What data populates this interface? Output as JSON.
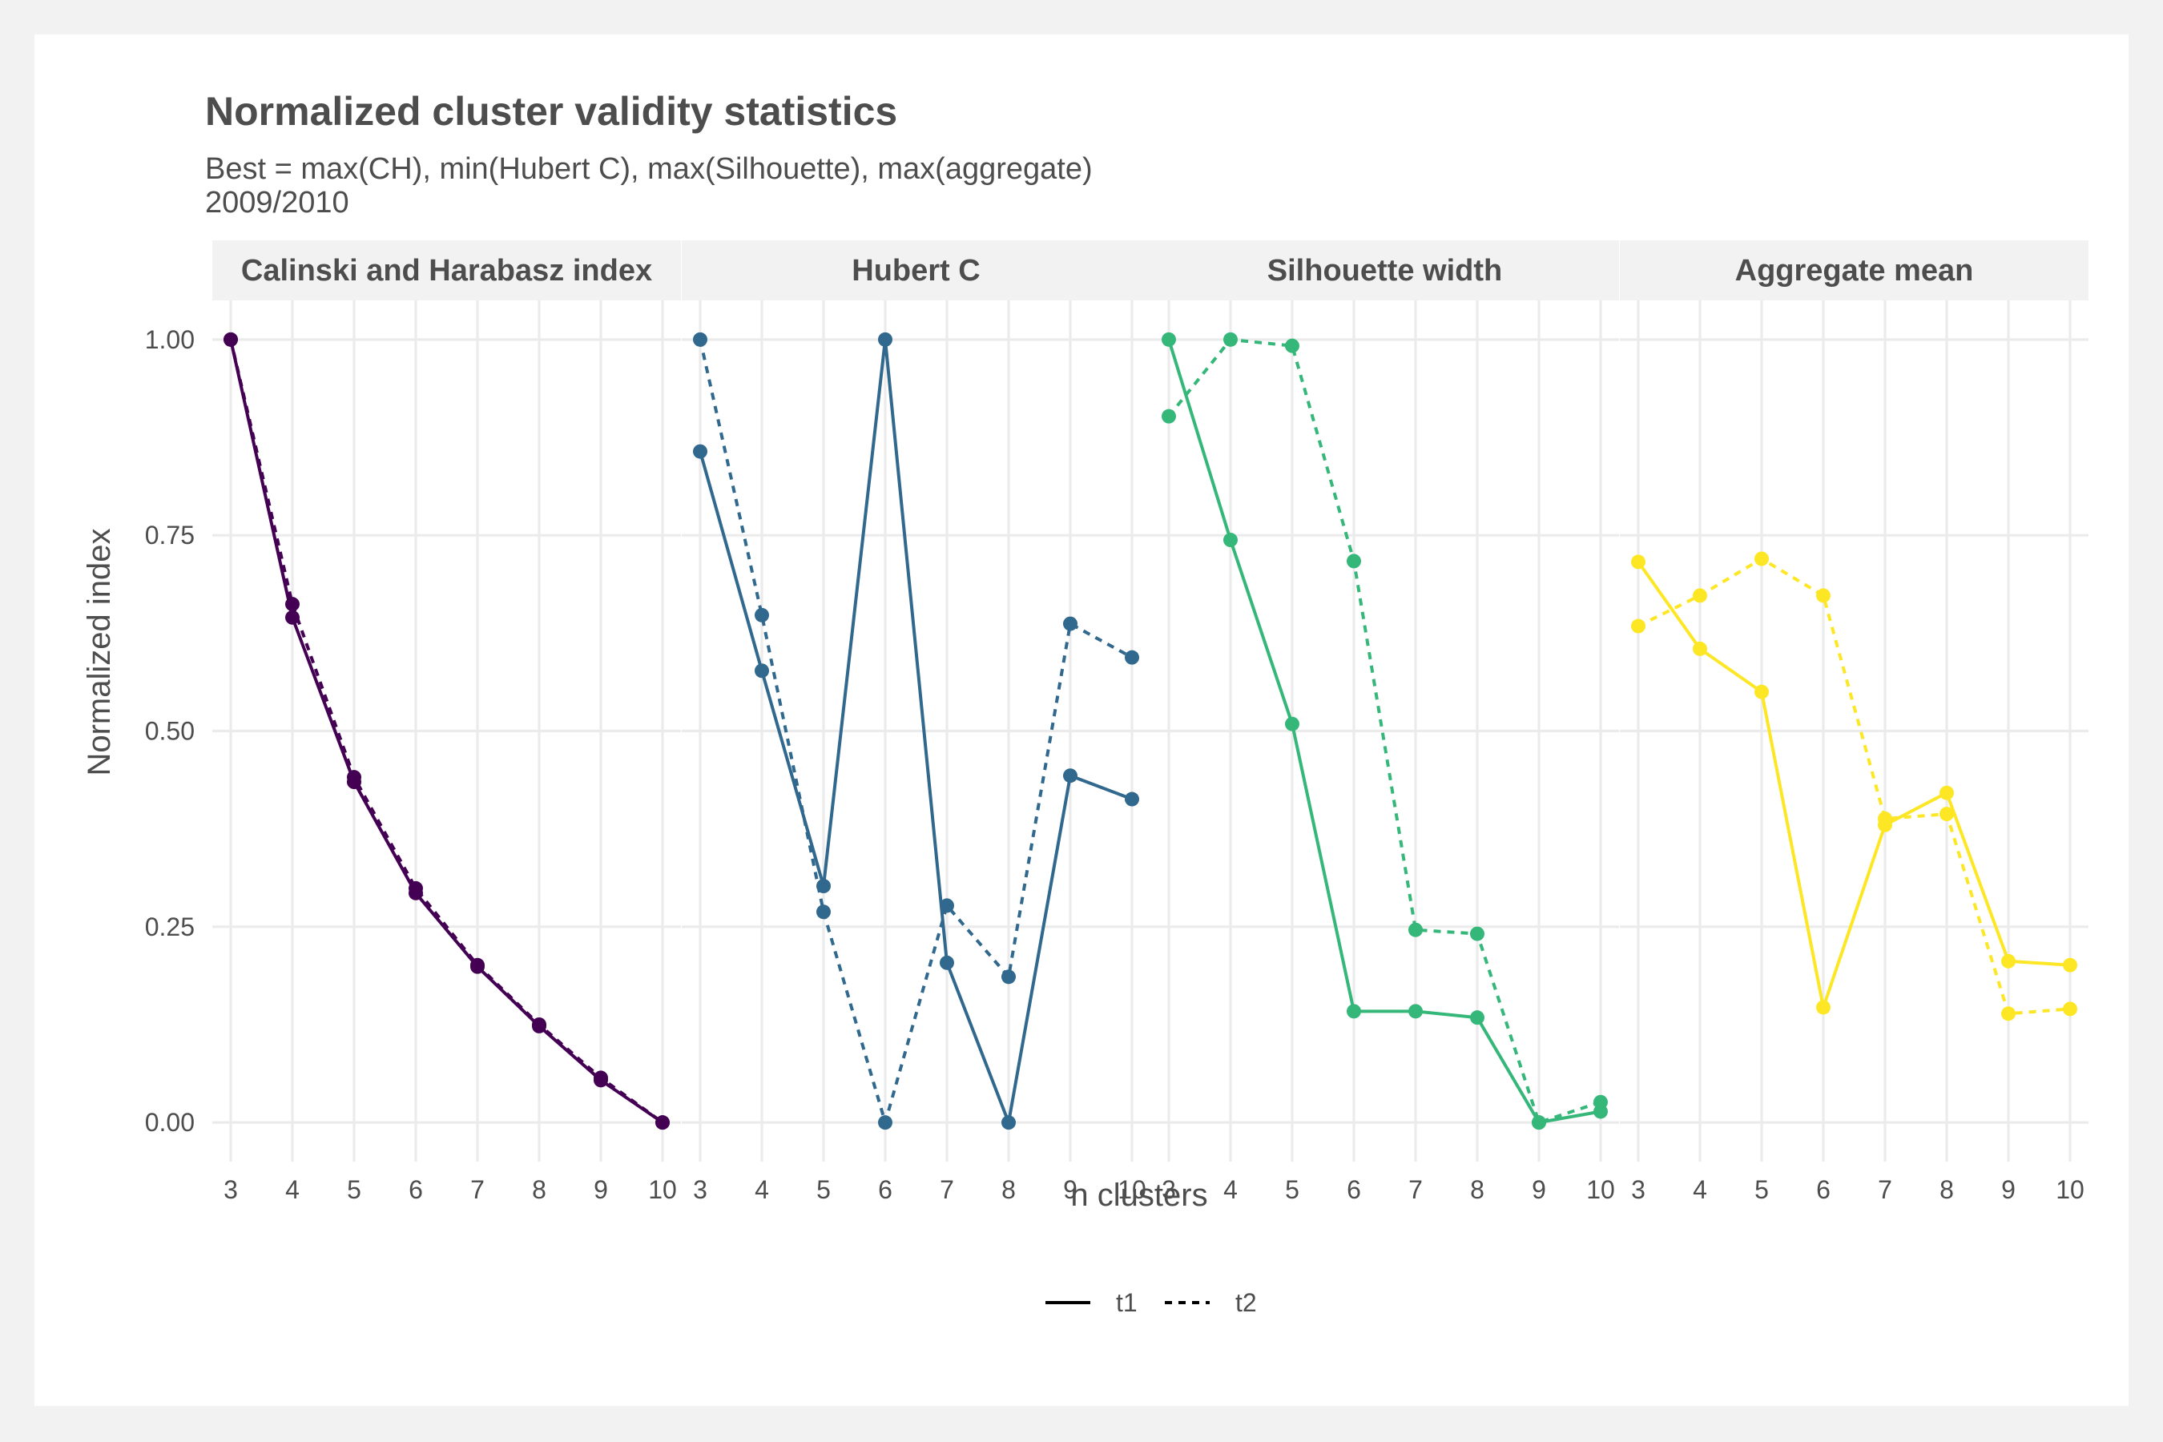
{
  "chart_data": {
    "type": "line",
    "title": "Normalized cluster validity statistics",
    "subtitle_lines": [
      "Best = max(CH), min(Hubert C), max(Silhouette), max(aggregate)",
      "2009/2010"
    ],
    "xlabel": "n clusters",
    "ylabel": "Normalized index",
    "x": [
      3,
      4,
      5,
      6,
      7,
      8,
      9,
      10
    ],
    "ylim": [
      -0.05,
      1.05
    ],
    "y_ticks": [
      0,
      0.25,
      0.5,
      0.75,
      1
    ],
    "y_tick_labels": [
      "0.00",
      "0.25",
      "0.50",
      "0.75",
      "1.00"
    ],
    "grid": true,
    "legend": {
      "position": "bottom",
      "entries": [
        {
          "label": "t1",
          "linetype": "solid"
        },
        {
          "label": "t2",
          "linetype": "dashed"
        }
      ]
    },
    "panels": [
      {
        "title": "Calinski and Harabasz index",
        "color": "#440154",
        "series": [
          {
            "name": "t1",
            "values": [
              1.0,
              0.645,
              0.435,
              0.293,
              0.199,
              0.123,
              0.054,
              0.0
            ]
          },
          {
            "name": "t2",
            "values": [
              1.0,
              0.662,
              0.441,
              0.299,
              0.201,
              0.125,
              0.057,
              0.0
            ]
          }
        ]
      },
      {
        "title": "Hubert C",
        "color": "#31688e",
        "series": [
          {
            "name": "t1",
            "values": [
              0.857,
              0.577,
              0.302,
              1.0,
              0.204,
              0.0,
              0.443,
              0.413
            ]
          },
          {
            "name": "t2",
            "values": [
              1.0,
              0.648,
              0.269,
              0.0,
              0.277,
              0.186,
              0.637,
              0.594
            ]
          }
        ]
      },
      {
        "title": "Silhouette width",
        "color": "#35b779",
        "series": [
          {
            "name": "t1",
            "values": [
              1.0,
              0.744,
              0.509,
              0.142,
              0.142,
              0.134,
              0.0,
              0.014
            ]
          },
          {
            "name": "t2",
            "values": [
              0.902,
              1.0,
              0.992,
              0.717,
              0.246,
              0.241,
              0.0,
              0.026
            ]
          }
        ]
      },
      {
        "title": "Aggregate mean",
        "color": "#fde725",
        "series": [
          {
            "name": "t1",
            "values": [
              0.716,
              0.605,
              0.55,
              0.147,
              0.38,
              0.421,
              0.206,
              0.201
            ]
          },
          {
            "name": "t2",
            "values": [
              0.634,
              0.673,
              0.72,
              0.673,
              0.388,
              0.394,
              0.139,
              0.145
            ]
          }
        ]
      }
    ]
  }
}
